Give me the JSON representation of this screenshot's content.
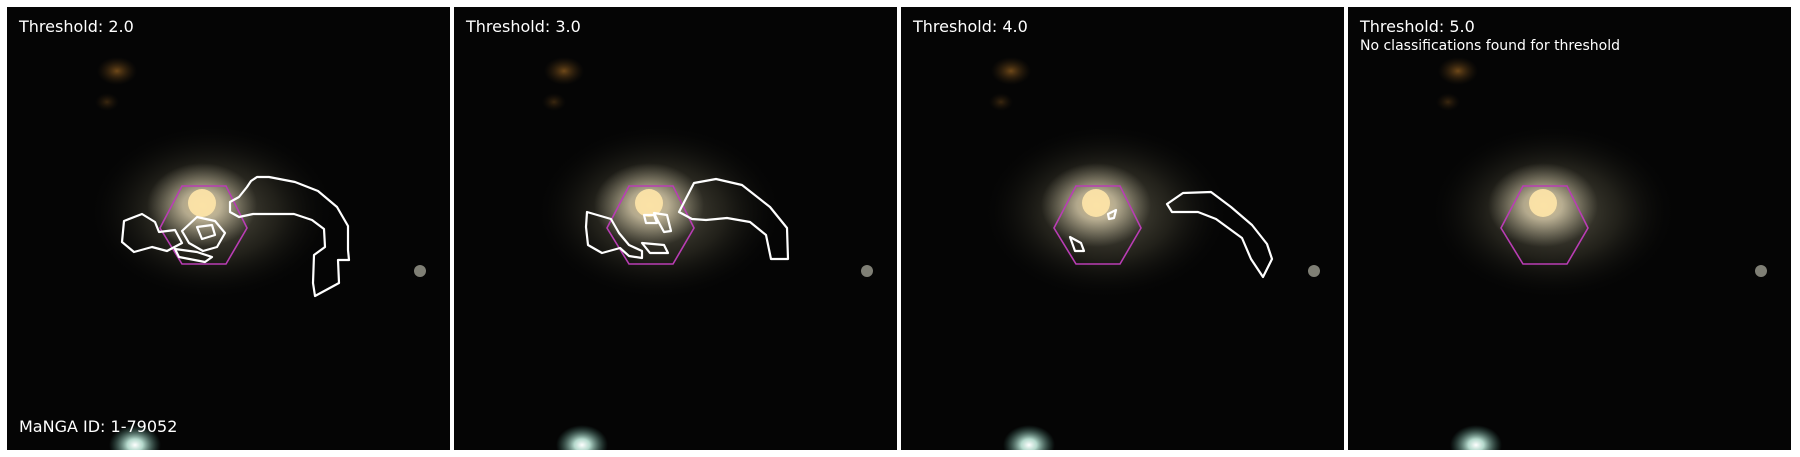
{
  "panels": [
    {
      "title": "Threshold: 2.0",
      "note": ""
    },
    {
      "title": "Threshold: 3.0",
      "note": ""
    },
    {
      "title": "Threshold: 4.0",
      "note": ""
    },
    {
      "title": "Threshold: 5.0",
      "note": "No classifications found for threshold"
    }
  ],
  "manga_id_label": "MaNGA ID: 1-79052",
  "colors": {
    "page_background": "#ffffff",
    "sky_background": "#050505",
    "contour": "#ffffff",
    "hexagon": "#b93db4",
    "galaxy_core": "#ffe6a8"
  }
}
